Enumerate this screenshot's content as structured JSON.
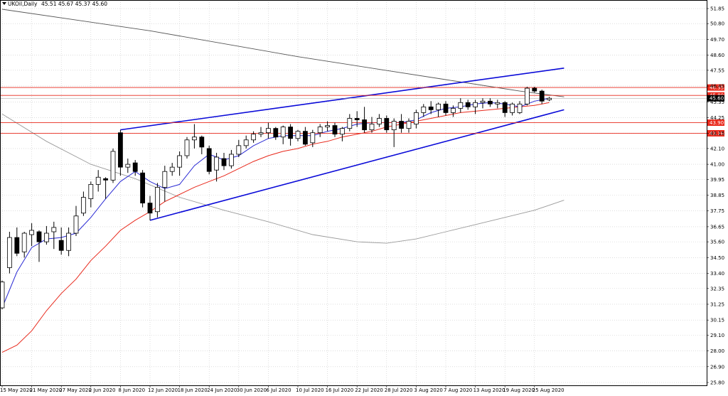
{
  "header": {
    "symbol_label": "UKOil,Daily",
    "ohlc_text": "45.51 45.67 45.37 45.60",
    "menu_icon": "triangle-down-icon"
  },
  "chart_data": {
    "type": "candlestick",
    "title": "UKOil,Daily",
    "ylim": [
      25.8,
      52.0
    ],
    "y_ticks": [
      "51.85",
      "50.80",
      "49.70",
      "48.60",
      "47.55",
      "46.45",
      "45.35",
      "44.25",
      "43.15",
      "42.10",
      "41.00",
      "39.95",
      "38.85",
      "37.75",
      "36.65",
      "35.60",
      "34.50",
      "33.40",
      "32.35",
      "31.25",
      "30.15",
      "29.10",
      "28.00",
      "26.90",
      "25.80"
    ],
    "x_labels": [
      {
        "i": 0,
        "text": "15 May 2020"
      },
      {
        "i": 4,
        "text": "21 May 2020"
      },
      {
        "i": 8,
        "text": "27 May 2020"
      },
      {
        "i": 12,
        "text": "2 Jun 2020"
      },
      {
        "i": 16,
        "text": "8 Jun 2020"
      },
      {
        "i": 20,
        "text": "12 Jun 2020"
      },
      {
        "i": 24,
        "text": "18 Jun 2020"
      },
      {
        "i": 28,
        "text": "24 Jun 2020"
      },
      {
        "i": 32,
        "text": "30 Jun 2020"
      },
      {
        "i": 36,
        "text": "6 Jul 2020"
      },
      {
        "i": 40,
        "text": "10 Jul 2020"
      },
      {
        "i": 44,
        "text": "16 Jul 2020"
      },
      {
        "i": 48,
        "text": "22 Jul 2020"
      },
      {
        "i": 52,
        "text": "28 Jul 2020"
      },
      {
        "i": 56,
        "text": "3 Aug 2020"
      },
      {
        "i": 60,
        "text": "7 Aug 2020"
      },
      {
        "i": 64,
        "text": "13 Aug 2020"
      },
      {
        "i": 68,
        "text": "19 Aug 2020"
      },
      {
        "i": 72,
        "text": "25 Aug 2020"
      }
    ],
    "candles": [
      [
        31.0,
        32.9,
        30.9,
        32.8
      ],
      [
        33.8,
        36.3,
        33.4,
        35.9
      ],
      [
        35.9,
        36.6,
        34.6,
        34.8
      ],
      [
        34.9,
        36.3,
        34.5,
        36.2
      ],
      [
        36.1,
        36.9,
        35.3,
        36.4
      ],
      [
        36.3,
        36.4,
        34.2,
        35.6
      ],
      [
        35.6,
        36.7,
        35.4,
        36.2
      ],
      [
        36.3,
        37.0,
        35.1,
        36.6
      ],
      [
        35.7,
        36.6,
        34.7,
        35.0
      ],
      [
        35.0,
        36.6,
        34.6,
        36.2
      ],
      [
        36.2,
        38.1,
        36.0,
        37.4
      ],
      [
        37.6,
        39.1,
        37.4,
        38.7
      ],
      [
        38.6,
        39.8,
        38.0,
        39.6
      ],
      [
        39.6,
        40.6,
        39.1,
        40.1
      ],
      [
        40.0,
        40.1,
        38.6,
        39.9
      ],
      [
        39.9,
        42.1,
        39.7,
        41.9
      ],
      [
        43.2,
        43.4,
        40.2,
        40.8
      ],
      [
        40.8,
        41.4,
        40.4,
        41.0
      ],
      [
        41.1,
        41.3,
        40.2,
        40.5
      ],
      [
        40.4,
        40.6,
        38.0,
        38.3
      ],
      [
        38.3,
        38.8,
        37.1,
        37.6
      ],
      [
        37.7,
        39.7,
        37.3,
        39.4
      ],
      [
        39.4,
        40.9,
        38.4,
        40.5
      ],
      [
        40.5,
        41.1,
        40.2,
        40.8
      ],
      [
        40.8,
        41.9,
        40.2,
        41.6
      ],
      [
        41.6,
        42.9,
        41.4,
        42.7
      ],
      [
        42.7,
        43.8,
        42.1,
        42.9
      ],
      [
        42.9,
        43.0,
        41.7,
        42.2
      ],
      [
        42.1,
        42.3,
        40.3,
        40.5
      ],
      [
        40.6,
        41.8,
        39.8,
        41.5
      ],
      [
        41.4,
        41.8,
        40.6,
        40.9
      ],
      [
        40.9,
        42.0,
        40.7,
        41.7
      ],
      [
        41.7,
        42.7,
        41.5,
        42.3
      ],
      [
        42.3,
        43.0,
        42.1,
        42.7
      ],
      [
        42.7,
        43.3,
        42.5,
        43.1
      ],
      [
        43.1,
        43.6,
        42.9,
        43.2
      ],
      [
        43.2,
        43.9,
        42.8,
        43.5
      ],
      [
        43.5,
        43.6,
        42.7,
        42.9
      ],
      [
        42.9,
        43.7,
        42.4,
        43.6
      ],
      [
        43.6,
        43.8,
        42.3,
        42.8
      ],
      [
        42.8,
        43.4,
        42.6,
        43.3
      ],
      [
        43.3,
        43.6,
        42.3,
        42.4
      ],
      [
        42.5,
        43.4,
        42.2,
        43.2
      ],
      [
        43.2,
        43.8,
        42.9,
        43.6
      ],
      [
        43.6,
        44.0,
        43.3,
        43.7
      ],
      [
        43.7,
        43.9,
        42.9,
        43.1
      ],
      [
        43.1,
        43.6,
        42.6,
        43.5
      ],
      [
        43.5,
        44.5,
        43.3,
        44.2
      ],
      [
        44.2,
        44.7,
        43.6,
        44.1
      ],
      [
        44.1,
        45.0,
        43.2,
        43.4
      ],
      [
        43.4,
        44.3,
        43.2,
        43.8
      ],
      [
        43.8,
        44.5,
        43.6,
        44.2
      ],
      [
        44.2,
        44.4,
        43.2,
        43.4
      ],
      [
        43.4,
        44.2,
        42.2,
        44.0
      ],
      [
        44.0,
        44.5,
        43.2,
        43.5
      ],
      [
        43.5,
        44.2,
        43.2,
        44.0
      ],
      [
        43.8,
        44.8,
        43.5,
        44.6
      ],
      [
        44.6,
        45.2,
        44.3,
        45.0
      ],
      [
        45.0,
        45.4,
        44.5,
        44.8
      ],
      [
        44.8,
        45.3,
        44.3,
        45.2
      ],
      [
        45.2,
        45.4,
        44.4,
        44.6
      ],
      [
        44.6,
        45.1,
        44.3,
        44.9
      ],
      [
        44.9,
        45.6,
        44.6,
        45.3
      ],
      [
        45.3,
        45.5,
        44.8,
        45.0
      ],
      [
        45.0,
        45.5,
        44.5,
        45.3
      ],
      [
        45.3,
        45.6,
        44.9,
        45.4
      ],
      [
        45.4,
        45.6,
        45.0,
        45.2
      ],
      [
        45.2,
        45.5,
        44.9,
        45.3
      ],
      [
        45.3,
        45.4,
        44.3,
        44.6
      ],
      [
        44.6,
        45.3,
        44.4,
        45.2
      ],
      [
        44.6,
        45.4,
        44.5,
        45.2
      ],
      [
        45.2,
        46.4,
        45.1,
        46.3
      ],
      [
        46.3,
        46.4,
        46.0,
        46.1
      ],
      [
        46.1,
        46.2,
        45.2,
        45.4
      ],
      [
        45.5,
        45.7,
        45.4,
        45.6
      ]
    ],
    "ma_blue": [
      [
        0,
        31.0
      ],
      [
        2,
        33.5
      ],
      [
        4,
        35.2
      ],
      [
        6,
        35.8
      ],
      [
        8,
        35.9
      ],
      [
        10,
        36.2
      ],
      [
        12,
        37.3
      ],
      [
        14,
        38.6
      ],
      [
        16,
        39.8
      ],
      [
        18,
        40.5
      ],
      [
        20,
        39.8
      ],
      [
        22,
        39.3
      ],
      [
        24,
        39.6
      ],
      [
        26,
        40.9
      ],
      [
        28,
        41.7
      ],
      [
        30,
        41.3
      ],
      [
        32,
        41.6
      ],
      [
        34,
        42.3
      ],
      [
        36,
        42.8
      ],
      [
        38,
        43.0
      ],
      [
        40,
        43.0
      ],
      [
        42,
        43.0
      ],
      [
        44,
        43.3
      ],
      [
        46,
        43.5
      ],
      [
        48,
        43.8
      ],
      [
        50,
        43.9
      ],
      [
        52,
        43.9
      ],
      [
        54,
        43.9
      ],
      [
        56,
        44.1
      ],
      [
        58,
        44.6
      ],
      [
        60,
        44.9
      ],
      [
        62,
        45.0
      ],
      [
        64,
        45.2
      ],
      [
        66,
        45.3
      ],
      [
        68,
        45.2
      ],
      [
        70,
        45.0
      ],
      [
        72,
        45.4
      ],
      [
        74,
        45.6
      ]
    ],
    "ma_red": [
      [
        0,
        27.9
      ],
      [
        2,
        28.4
      ],
      [
        4,
        29.4
      ],
      [
        6,
        30.8
      ],
      [
        8,
        32.0
      ],
      [
        10,
        33.0
      ],
      [
        12,
        34.3
      ],
      [
        14,
        35.3
      ],
      [
        16,
        36.4
      ],
      [
        18,
        37.1
      ],
      [
        20,
        37.7
      ],
      [
        22,
        38.4
      ],
      [
        24,
        38.9
      ],
      [
        26,
        39.4
      ],
      [
        28,
        39.8
      ],
      [
        30,
        40.2
      ],
      [
        32,
        40.7
      ],
      [
        34,
        41.2
      ],
      [
        36,
        41.6
      ],
      [
        38,
        41.9
      ],
      [
        40,
        42.1
      ],
      [
        42,
        42.4
      ],
      [
        44,
        42.6
      ],
      [
        46,
        42.9
      ],
      [
        48,
        43.1
      ],
      [
        50,
        43.3
      ],
      [
        52,
        43.6
      ],
      [
        54,
        43.8
      ],
      [
        56,
        44.0
      ],
      [
        58,
        44.2
      ],
      [
        60,
        44.4
      ],
      [
        62,
        44.6
      ],
      [
        64,
        44.7
      ],
      [
        66,
        44.8
      ],
      [
        68,
        44.9
      ],
      [
        70,
        45.0
      ],
      [
        72,
        45.1
      ],
      [
        74,
        45.3
      ]
    ],
    "ma_black": [
      [
        0,
        51.8
      ],
      [
        20,
        50.3
      ],
      [
        40,
        48.5
      ],
      [
        60,
        46.9
      ],
      [
        70,
        46.1
      ],
      [
        76,
        45.7
      ]
    ],
    "ma_gray": [
      [
        0,
        44.5
      ],
      [
        6,
        42.6
      ],
      [
        12,
        41.0
      ],
      [
        18,
        40.0
      ],
      [
        24,
        38.7
      ],
      [
        30,
        37.8
      ],
      [
        36,
        37.0
      ],
      [
        42,
        36.1
      ],
      [
        48,
        35.6
      ],
      [
        52,
        35.5
      ],
      [
        56,
        35.8
      ],
      [
        60,
        36.3
      ],
      [
        64,
        36.8
      ],
      [
        68,
        37.3
      ],
      [
        72,
        37.8
      ],
      [
        76,
        38.5
      ]
    ],
    "channel_upper": [
      [
        16,
        43.4
      ],
      [
        76,
        47.7
      ]
    ],
    "channel_lower": [
      [
        20,
        37.1
      ],
      [
        76,
        44.8
      ]
    ],
    "horizontal_levels": [
      {
        "value": 46.35,
        "label": "46.35",
        "color": "#e8291c"
      },
      {
        "value": 45.8,
        "label": "45.80",
        "color": "#e8291c"
      },
      {
        "value": 43.9,
        "label": "43.90",
        "color": "#e8291c"
      },
      {
        "value": 43.16,
        "label": "43.16",
        "color": "#e8291c"
      }
    ],
    "current_price": {
      "value": 45.6,
      "label": "45.60",
      "color": "#000000"
    },
    "colors": {
      "background": "#ffffff",
      "grid": "#c8c8c8",
      "candle_up": "#ffffff",
      "candle_down": "#000000",
      "ma_blue": "#2b2bd4",
      "ma_red": "#e8291c",
      "ma_black": "#555555",
      "ma_gray": "#9a9a9a",
      "channel": "#0a0ad8",
      "level": "#e8291c"
    },
    "grid": true
  }
}
